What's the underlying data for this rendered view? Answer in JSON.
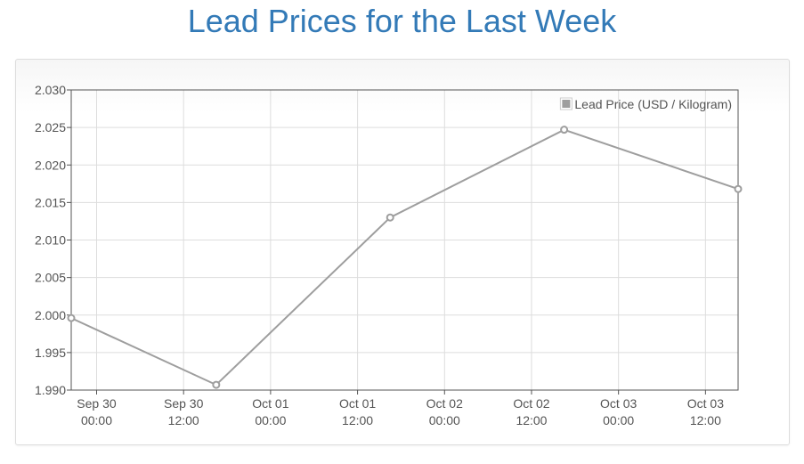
{
  "page": {
    "title": "Lead Prices for the Last Week"
  },
  "chart_data": {
    "type": "line",
    "series": [
      {
        "name": "Lead Price (USD / Kilogram)",
        "points": [
          {
            "x": "2025-09-29T20:30",
            "y": 1.9996
          },
          {
            "x": "2025-09-30T16:30",
            "y": 1.9907
          },
          {
            "x": "2025-10-01T16:30",
            "y": 2.013
          },
          {
            "x": "2025-10-02T16:30",
            "y": 2.0247
          },
          {
            "x": "2025-10-03T16:30",
            "y": 2.0168
          }
        ]
      }
    ],
    "ylim": [
      1.99,
      2.03
    ],
    "yticks": [
      "2.030",
      "2.025",
      "2.020",
      "2.015",
      "2.010",
      "2.005",
      "2.000",
      "1.995",
      "1.990"
    ],
    "xlim": [
      "2025-09-29T20:30",
      "2025-10-03T16:30"
    ],
    "xticks": [
      {
        "x": "2025-09-30T00:00",
        "line1": "Sep 30",
        "line2": "00:00"
      },
      {
        "x": "2025-09-30T12:00",
        "line1": "Sep 30",
        "line2": "12:00"
      },
      {
        "x": "2025-10-01T00:00",
        "line1": "Oct 01",
        "line2": "00:00"
      },
      {
        "x": "2025-10-01T12:00",
        "line1": "Oct 01",
        "line2": "12:00"
      },
      {
        "x": "2025-10-02T00:00",
        "line1": "Oct 02",
        "line2": "00:00"
      },
      {
        "x": "2025-10-02T12:00",
        "line1": "Oct 02",
        "line2": "12:00"
      },
      {
        "x": "2025-10-03T00:00",
        "line1": "Oct 03",
        "line2": "00:00"
      },
      {
        "x": "2025-10-03T12:00",
        "line1": "Oct 03",
        "line2": "12:00"
      }
    ],
    "grid": true,
    "legend_position": "top-right",
    "colors": {
      "line": "#9e9e9e",
      "grid": "#dddddd",
      "axis": "#545454",
      "title": "#337ab7"
    }
  }
}
